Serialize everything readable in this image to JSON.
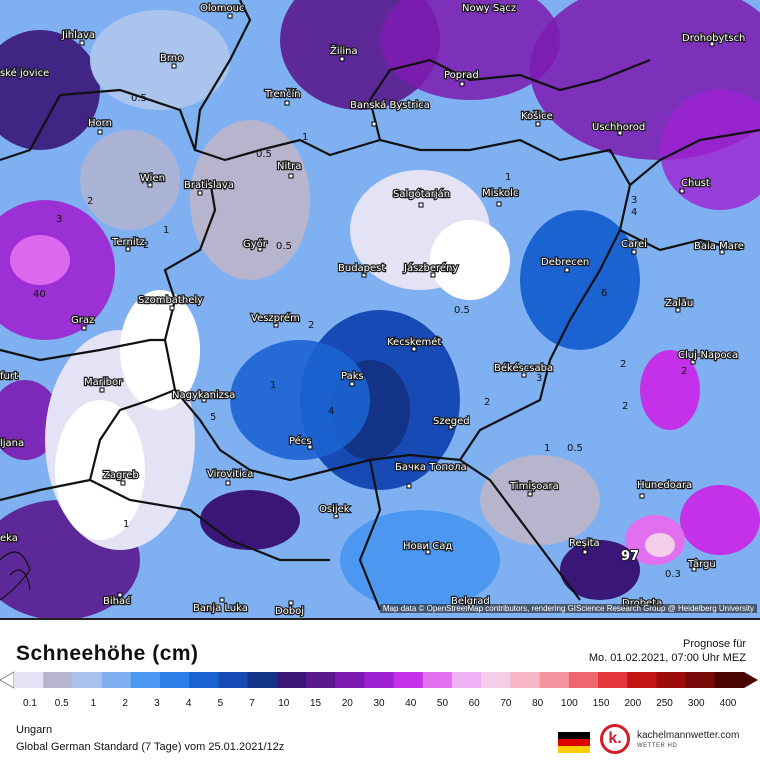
{
  "map": {
    "attribution": "Map data © OpenStreetMap contributors, rendering GIScience Research Group @ Heidelberg University",
    "cities": [
      "Olomouc",
      "Nowy Sącz",
      "Jihlava",
      "Drohobytsch",
      "Brno",
      "Žilina",
      "Poprad",
      "ské jovice",
      "Banská Bystrica",
      "Trenčín",
      "Košice",
      "Uschhorod",
      "Horn",
      "Nitra",
      "Chust",
      "Wien",
      "Bratislava",
      "Salgótarján",
      "Miskolc",
      "Ternitz",
      "Győr",
      "Carei",
      "Baia Mare",
      "Budapest",
      "Jászberény",
      "Debrecen",
      "Szombathely",
      "Zalău",
      "Graz",
      "Veszprém",
      "Kecskemét",
      "Cluj-Napoca",
      "furt",
      "Paks",
      "Békéscsaba",
      "Maribor",
      "Nagykanizsa",
      "Szeged",
      "Pécs",
      "ljana",
      "Zagreb",
      "Virovitica",
      "Бачка Топола",
      "Timișoara",
      "Hunedoara",
      "Osijek",
      "Нови Сад",
      "Reșita",
      "Târgu",
      "eka",
      "Bihać",
      "Banja Luka",
      "Doboj",
      "Belgrad",
      "Drobeta"
    ],
    "values": [
      "0.5",
      "0.5",
      "0.5",
      "2",
      "3",
      "1",
      "2",
      "40",
      "1",
      "1",
      "0.5",
      "2",
      "1",
      "4",
      "6",
      "3",
      "4",
      "2",
      "1",
      "0.5",
      "2",
      "2",
      "2",
      "97",
      "0.3",
      "1",
      "5",
      "3"
    ]
  },
  "footer": {
    "title": "Schneehöhe (cm)",
    "forecast_label": "Prognose für",
    "forecast_time": "Mo. 01.02.2021, 07:00 Uhr MEZ",
    "region": "Ungarn",
    "model": "Global German Standard (7 Tage) vom 25.01.2021/12z",
    "brand": "kachelmannwetter.com",
    "brand_sub": "WETTER HD",
    "logo_letter": "k."
  },
  "legend": {
    "ticks": [
      "0.1",
      "0.5",
      "1",
      "2",
      "3",
      "4",
      "5",
      "7",
      "10",
      "15",
      "20",
      "30",
      "40",
      "50",
      "60",
      "70",
      "80",
      "100",
      "150",
      "200",
      "250",
      "300",
      "400"
    ],
    "colors": [
      "#e4e2f5",
      "#b7b4cd",
      "#aac4ee",
      "#7fb1f2",
      "#4c98f0",
      "#2b7ee8",
      "#1c63d2",
      "#174ab4",
      "#133386",
      "#3a1679",
      "#5a1a8e",
      "#7d1bb0",
      "#9e22d2",
      "#c332e8",
      "#e26ff0",
      "#eeb2f4",
      "#f4cde8",
      "#f7b6c7",
      "#f4939e",
      "#f0666e",
      "#e3353b",
      "#c41515",
      "#9e0b0b",
      "#7a0a0a",
      "#4a0505"
    ]
  }
}
